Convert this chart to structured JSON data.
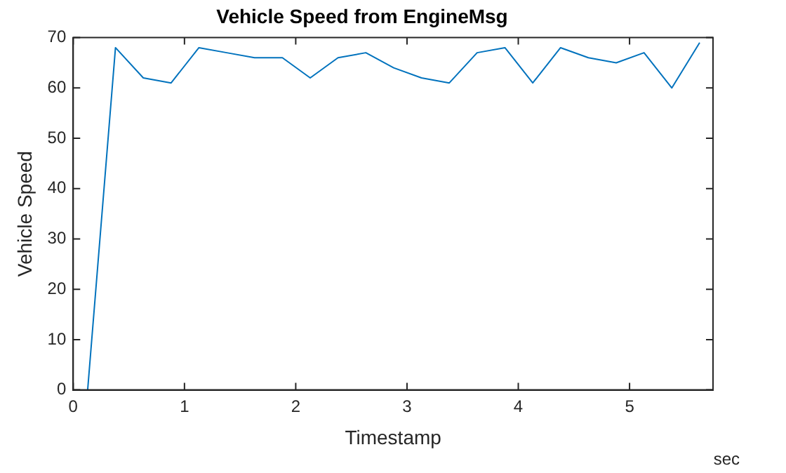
{
  "chart_data": {
    "type": "line",
    "title": "Vehicle Speed from EngineMsg",
    "xlabel": "Timestamp",
    "ylabel": "Vehicle Speed",
    "annotations": [
      "sec"
    ],
    "x": [
      0.13,
      0.38,
      0.63,
      0.88,
      1.13,
      1.38,
      1.63,
      1.88,
      2.13,
      2.38,
      2.63,
      2.88,
      3.13,
      3.38,
      3.63,
      3.88,
      4.13,
      4.38,
      4.63,
      4.88,
      5.13,
      5.38,
      5.63
    ],
    "series": [
      {
        "color": "#0072bd",
        "values": [
          0,
          68,
          62,
          61,
          68,
          67,
          66,
          66,
          62,
          66,
          67,
          64,
          62,
          61,
          67,
          68,
          61,
          68,
          66,
          65,
          67,
          60,
          69
        ]
      }
    ],
    "xlim": [
      0,
      5.75
    ],
    "xticks": [
      0,
      1,
      2,
      3,
      4,
      5
    ],
    "ylim": [
      0,
      70
    ],
    "yticks": [
      0,
      10,
      20,
      30,
      40,
      50,
      60,
      70
    ],
    "grid": false,
    "legend": false,
    "marker": "none",
    "line_style": "solid"
  }
}
